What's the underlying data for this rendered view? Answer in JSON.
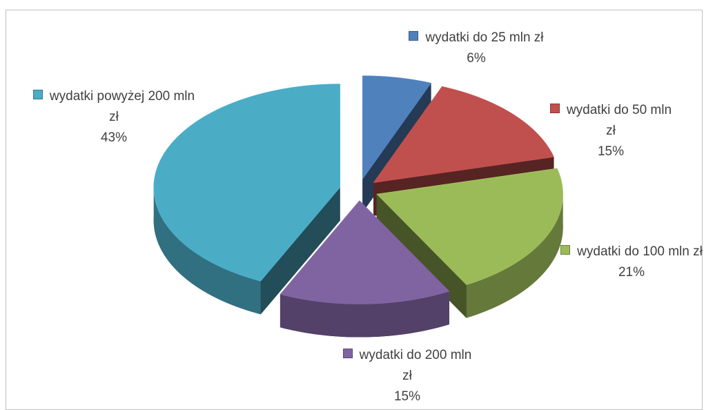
{
  "chart_data": {
    "type": "pie",
    "categories": [
      "wydatki do 25 mln zł",
      "wydatki do 50 mln zł",
      "wydatki do 100 mln zł",
      "wydatki do 200 mln zł",
      "wydatki powyżej 200 mln zł"
    ],
    "values": [
      6,
      15,
      21,
      15,
      43
    ],
    "value_labels": [
      "6%",
      "15%",
      "21%",
      "15%",
      "43%"
    ],
    "colors": [
      "#4f81bd",
      "#c0504d",
      "#9bbb59",
      "#8064a2",
      "#4bacc6"
    ]
  }
}
